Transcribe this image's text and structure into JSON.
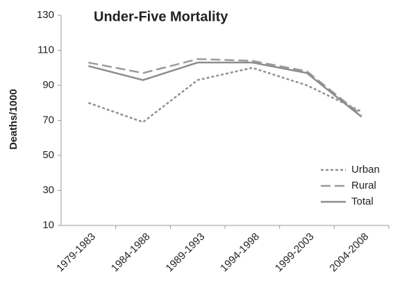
{
  "chart_data": {
    "type": "line",
    "title": "Under-Five Mortality",
    "y_label": "Deaths/1000",
    "categories": [
      "1979-1983",
      "1984-1988",
      "1989-1993",
      "1994-1998",
      "1999-2003",
      "2004-2008"
    ],
    "series": [
      {
        "name": "Urban",
        "color": "#909090",
        "style": "dotted",
        "values": [
          80,
          69,
          93,
          100,
          90,
          75
        ]
      },
      {
        "name": "Rural",
        "color": "#9a9a9a",
        "style": "dashed",
        "values": [
          103,
          97,
          105,
          104,
          98,
          73
        ]
      },
      {
        "name": "Total",
        "color": "#8c8c8c",
        "style": "solid",
        "values": [
          101,
          93,
          103,
          103,
          97,
          72
        ]
      }
    ],
    "ylim": [
      10,
      130
    ],
    "yticks": [
      10,
      30,
      50,
      70,
      90,
      110,
      130
    ],
    "grid": false,
    "legend": "lower right"
  }
}
